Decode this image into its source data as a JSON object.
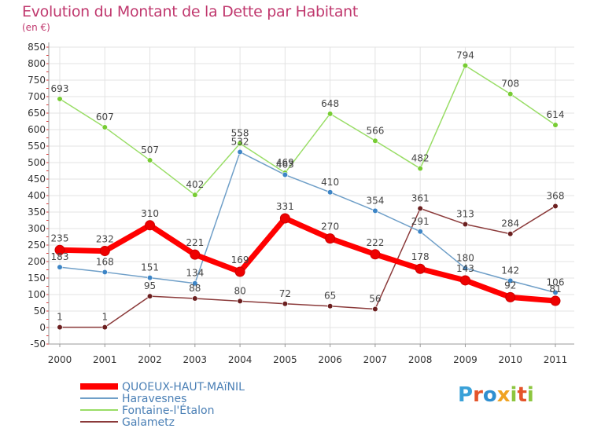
{
  "header": {
    "title": "Evolution du Montant de la Dette par Habitant",
    "subtitle": "(en €)"
  },
  "logo": {
    "letters": [
      "P",
      "r",
      "o",
      "x",
      "i",
      "t",
      "i"
    ],
    "colors": [
      "#3aa1d8",
      "#e4542a",
      "#2f8fd0",
      "#f0a323",
      "#8dc63f",
      "#e4542a",
      "#8dc63f"
    ]
  },
  "chart_data": {
    "type": "line",
    "title": "Evolution du Montant de la Dette par Habitant",
    "subtitle": "(en €)",
    "xlabel": "",
    "ylabel": "",
    "x": [
      "2000",
      "2001",
      "2002",
      "2003",
      "2004",
      "2005",
      "2006",
      "2007",
      "2008",
      "2009",
      "2010",
      "2011"
    ],
    "ylim": [
      -50,
      850
    ],
    "yticks": [
      "850",
      "800",
      "750",
      "700",
      "650",
      "600",
      "550",
      "500",
      "450",
      "400",
      "350",
      "300",
      "250",
      "200",
      "150",
      "100",
      "50",
      "0",
      "-50"
    ],
    "grid": true,
    "legend": "bottom-left",
    "series": [
      {
        "name": "QUOEUX-HAUT-MAïNIL",
        "color": "#ff0000",
        "point_color": "#ee0000",
        "thick": true,
        "values": [
          235,
          232,
          310,
          221,
          169,
          331,
          270,
          222,
          178,
          143,
          92,
          81
        ],
        "labels": [
          "235",
          "232",
          "310",
          "221",
          "169",
          "331",
          "270",
          "222",
          "178",
          "143",
          "92",
          "81"
        ]
      },
      {
        "name": "Haravesnes",
        "color": "#6f9fc8",
        "point_color": "#3d85c6",
        "thick": false,
        "values": [
          183,
          168,
          151,
          134,
          532,
          463,
          410,
          354,
          291,
          180,
          142,
          106
        ],
        "labels": [
          "183",
          "168",
          "151",
          "134",
          "532",
          "463",
          "410",
          "354",
          "291",
          "180",
          "142",
          "106"
        ]
      },
      {
        "name": "Fontaine-l'Étalon",
        "color": "#99dd66",
        "point_color": "#77cc33",
        "thick": false,
        "values": [
          693,
          607,
          507,
          402,
          558,
          469,
          648,
          566,
          482,
          794,
          708,
          614
        ],
        "labels": [
          "693",
          "607",
          "507",
          "402",
          "558",
          "469",
          "648",
          "566",
          "482",
          "794",
          "708",
          "614"
        ]
      },
      {
        "name": "Galametz",
        "color": "#8b3a3a",
        "point_color": "#6b1f1f",
        "thick": false,
        "values": [
          1,
          1,
          95,
          88,
          80,
          72,
          65,
          56,
          361,
          313,
          284,
          368
        ],
        "labels": [
          "1",
          "1",
          "95",
          "88",
          "80",
          "72",
          "65",
          "56",
          "361",
          "313",
          "284",
          "368"
        ]
      }
    ]
  }
}
